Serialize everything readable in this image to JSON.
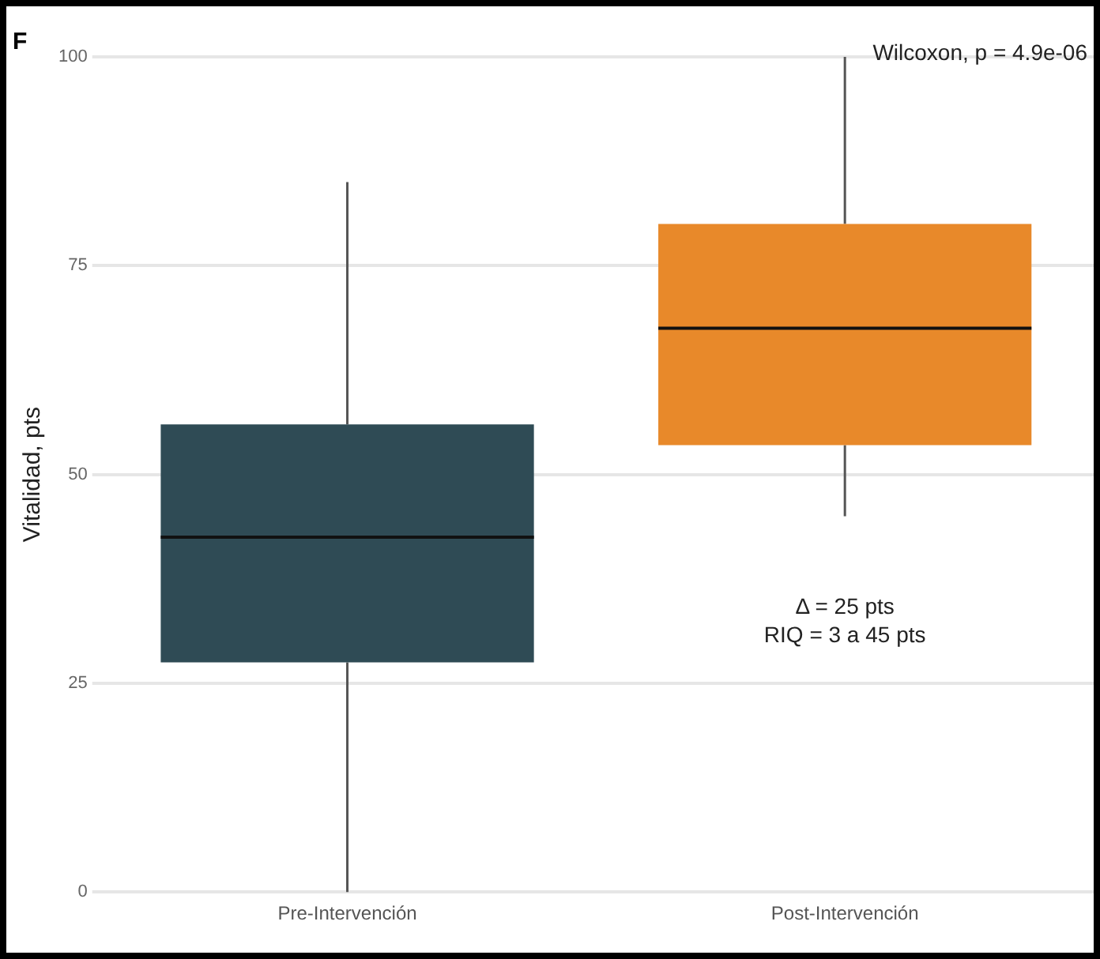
{
  "chart_data": {
    "type": "box",
    "title": "F",
    "ylabel": "Vitalidad, pts",
    "categories": [
      "Pre-Intervención",
      "Post-Intervención"
    ],
    "boxes": [
      {
        "low": 0,
        "q1": 27.5,
        "median": 42.5,
        "q3": 56,
        "high": 85
      },
      {
        "low": 45,
        "q1": 53.5,
        "median": 67.5,
        "q3": 80,
        "high": 100
      }
    ],
    "colors": [
      "#2f4b55",
      "#e8892a"
    ],
    "ylim": [
      0,
      100
    ],
    "yticks": [
      0,
      25,
      50,
      75,
      100
    ],
    "grid": "y",
    "annotations": [
      "Wilcoxon, p = 4.9e-06",
      "Δ = 25 pts",
      "RIQ = 3 a 45 pts"
    ]
  }
}
